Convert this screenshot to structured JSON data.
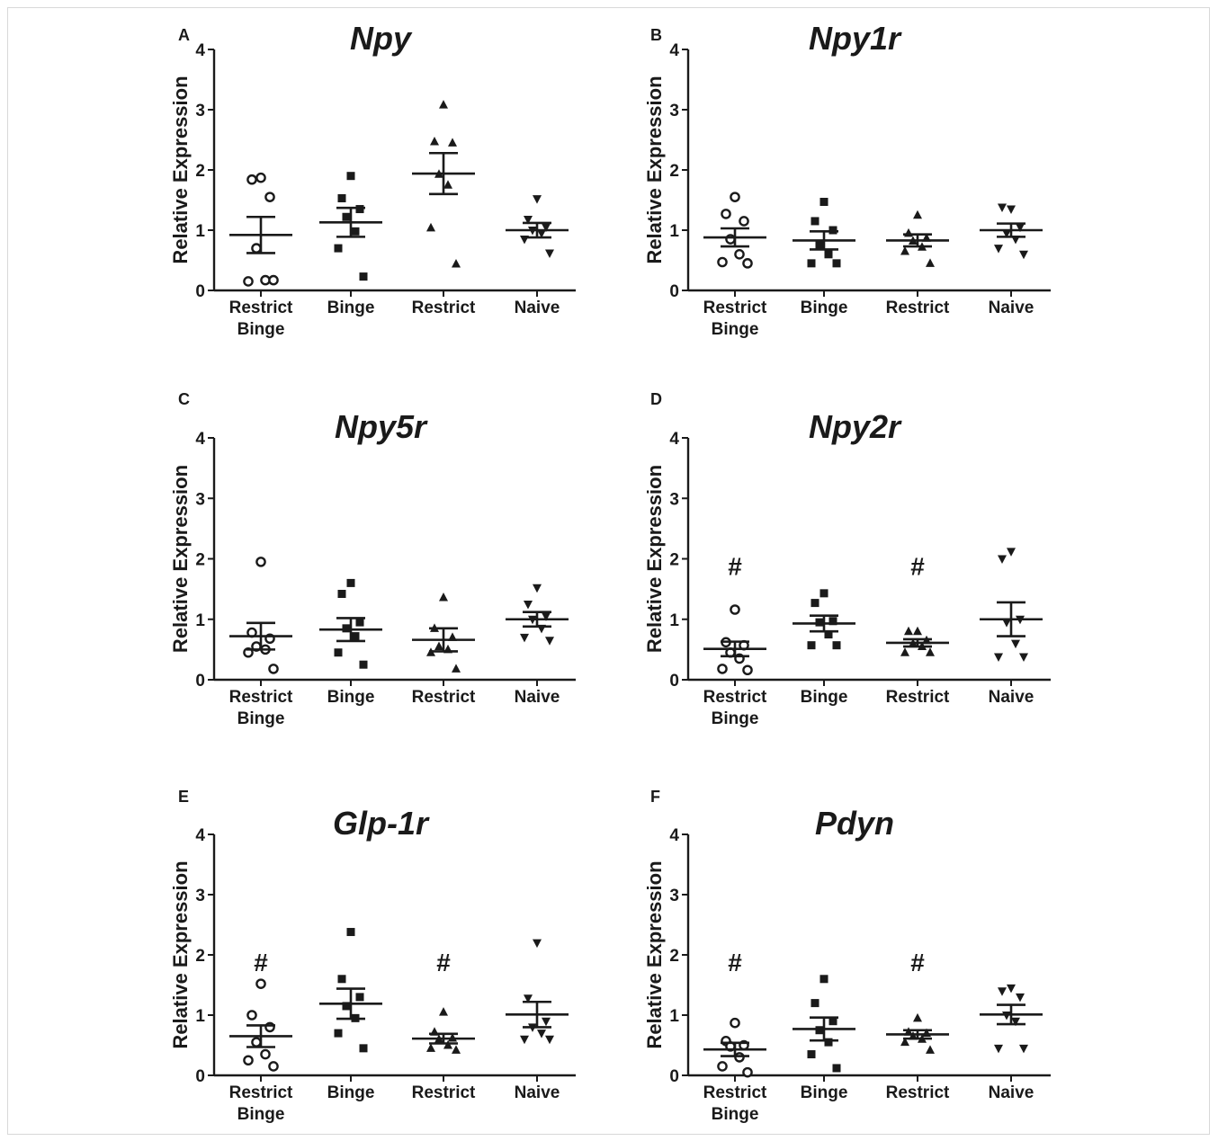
{
  "y_axis_label": "Relative Expression",
  "chart_data": [
    {
      "panel": "A",
      "title": "Npy",
      "type": "scatter",
      "categories": [
        "Restrict\nBinge",
        "Binge",
        "Restrict",
        "Naive"
      ],
      "ylim": [
        0,
        4
      ],
      "yticks": [
        0,
        1,
        2,
        3,
        4
      ],
      "series": [
        {
          "marker": "open-circle",
          "points": [
            1.87,
            1.84,
            1.55,
            0.7,
            0.17,
            0.15,
            0.17
          ],
          "mean": 0.92,
          "sem": 0.3
        },
        {
          "marker": "square",
          "points": [
            1.9,
            1.53,
            1.35,
            1.22,
            0.98,
            0.7,
            0.23
          ],
          "mean": 1.13,
          "sem": 0.24
        },
        {
          "marker": "triangle-up",
          "points": [
            3.08,
            2.47,
            2.45,
            1.93,
            1.75,
            1.04,
            0.44
          ],
          "mean": 1.94,
          "sem": 0.34
        },
        {
          "marker": "triangle-down",
          "points": [
            1.52,
            1.18,
            1.05,
            1.0,
            0.95,
            0.85,
            0.62
          ],
          "mean": 1.0,
          "sem": 0.12
        }
      ],
      "annotations": []
    },
    {
      "panel": "B",
      "title": "Npy1r",
      "type": "scatter",
      "categories": [
        "Restrict\nBinge",
        "Binge",
        "Restrict",
        "Naive"
      ],
      "ylim": [
        0,
        4
      ],
      "yticks": [
        0,
        1,
        2,
        3,
        4
      ],
      "series": [
        {
          "marker": "open-circle",
          "points": [
            1.55,
            1.27,
            1.15,
            0.85,
            0.6,
            0.47,
            0.45
          ],
          "mean": 0.88,
          "sem": 0.15
        },
        {
          "marker": "square",
          "points": [
            1.47,
            1.15,
            1.0,
            0.75,
            0.6,
            0.45,
            0.45
          ],
          "mean": 0.83,
          "sem": 0.15
        },
        {
          "marker": "triangle-up",
          "points": [
            1.25,
            0.95,
            0.87,
            0.82,
            0.72,
            0.65,
            0.45
          ],
          "mean": 0.83,
          "sem": 0.1
        },
        {
          "marker": "triangle-down",
          "points": [
            1.35,
            1.38,
            1.05,
            0.95,
            0.85,
            0.7,
            0.6
          ],
          "mean": 1.0,
          "sem": 0.11
        }
      ],
      "annotations": []
    },
    {
      "panel": "C",
      "title": "Npy5r",
      "type": "scatter",
      "categories": [
        "Restrict\nBinge",
        "Binge",
        "Restrict",
        "Naive"
      ],
      "ylim": [
        0,
        4
      ],
      "yticks": [
        0,
        1,
        2,
        3,
        4
      ],
      "series": [
        {
          "marker": "open-circle",
          "points": [
            1.95,
            0.78,
            0.68,
            0.55,
            0.5,
            0.45,
            0.18
          ],
          "mean": 0.72,
          "sem": 0.22
        },
        {
          "marker": "square",
          "points": [
            1.6,
            1.42,
            0.95,
            0.85,
            0.72,
            0.45,
            0.25
          ],
          "mean": 0.83,
          "sem": 0.19
        },
        {
          "marker": "triangle-up",
          "points": [
            1.36,
            0.85,
            0.7,
            0.55,
            0.5,
            0.45,
            0.18
          ],
          "mean": 0.66,
          "sem": 0.19
        },
        {
          "marker": "triangle-down",
          "points": [
            1.52,
            1.25,
            1.05,
            1.0,
            0.85,
            0.7,
            0.65
          ],
          "mean": 1.0,
          "sem": 0.12
        }
      ],
      "annotations": []
    },
    {
      "panel": "D",
      "title": "Npy2r",
      "type": "scatter",
      "categories": [
        "Restrict\nBinge",
        "Binge",
        "Restrict",
        "Naive"
      ],
      "ylim": [
        0,
        4
      ],
      "yticks": [
        0,
        1,
        2,
        3,
        4
      ],
      "series": [
        {
          "marker": "open-circle",
          "points": [
            1.16,
            0.62,
            0.57,
            0.45,
            0.35,
            0.18,
            0.16
          ],
          "mean": 0.51,
          "sem": 0.12
        },
        {
          "marker": "square",
          "points": [
            1.43,
            1.27,
            0.97,
            0.95,
            0.75,
            0.57,
            0.57
          ],
          "mean": 0.93,
          "sem": 0.13
        },
        {
          "marker": "triangle-up",
          "points": [
            0.8,
            0.8,
            0.65,
            0.6,
            0.55,
            0.45,
            0.45
          ],
          "mean": 0.61,
          "sem": 0.06
        },
        {
          "marker": "triangle-down",
          "points": [
            2.12,
            2.0,
            1.0,
            0.95,
            0.6,
            0.38,
            0.38
          ],
          "mean": 1.0,
          "sem": 0.28
        }
      ],
      "annotations": [
        {
          "category": 0,
          "text": "#",
          "y": 1.88
        },
        {
          "category": 2,
          "text": "#",
          "y": 1.88
        }
      ]
    },
    {
      "panel": "E",
      "title": "Glp-1r",
      "type": "scatter",
      "categories": [
        "Restrict\nBinge",
        "Binge",
        "Restrict",
        "Naive"
      ],
      "ylim": [
        0,
        4
      ],
      "yticks": [
        0,
        1,
        2,
        3,
        4
      ],
      "series": [
        {
          "marker": "open-circle",
          "points": [
            1.52,
            1.0,
            0.8,
            0.55,
            0.35,
            0.25,
            0.15
          ],
          "mean": 0.65,
          "sem": 0.18
        },
        {
          "marker": "square",
          "points": [
            2.38,
            1.6,
            1.3,
            1.15,
            0.95,
            0.7,
            0.45
          ],
          "mean": 1.19,
          "sem": 0.25
        },
        {
          "marker": "triangle-up",
          "points": [
            1.05,
            0.72,
            0.62,
            0.6,
            0.5,
            0.45,
            0.42
          ],
          "mean": 0.61,
          "sem": 0.08
        },
        {
          "marker": "triangle-down",
          "points": [
            2.2,
            1.28,
            0.9,
            0.8,
            0.7,
            0.6,
            0.6
          ],
          "mean": 1.01,
          "sem": 0.21
        }
      ],
      "annotations": [
        {
          "category": 0,
          "text": "#",
          "y": 1.88
        },
        {
          "category": 2,
          "text": "#",
          "y": 1.88
        }
      ]
    },
    {
      "panel": "F",
      "title": "Pdyn",
      "type": "scatter",
      "categories": [
        "Restrict\nBinge",
        "Binge",
        "Restrict",
        "Naive"
      ],
      "ylim": [
        0,
        4
      ],
      "yticks": [
        0,
        1,
        2,
        3,
        4
      ],
      "series": [
        {
          "marker": "open-circle",
          "points": [
            0.87,
            0.57,
            0.5,
            0.48,
            0.3,
            0.15,
            0.05
          ],
          "mean": 0.43,
          "sem": 0.11
        },
        {
          "marker": "square",
          "points": [
            1.6,
            1.2,
            0.9,
            0.75,
            0.55,
            0.35,
            0.12
          ],
          "mean": 0.77,
          "sem": 0.19
        },
        {
          "marker": "triangle-up",
          "points": [
            0.95,
            0.72,
            0.7,
            0.65,
            0.6,
            0.55,
            0.42
          ],
          "mean": 0.68,
          "sem": 0.07
        },
        {
          "marker": "triangle-down",
          "points": [
            1.45,
            1.4,
            1.3,
            1.0,
            0.9,
            0.45,
            0.45
          ],
          "mean": 1.01,
          "sem": 0.16
        }
      ],
      "annotations": [
        {
          "category": 0,
          "text": "#",
          "y": 1.88
        },
        {
          "category": 2,
          "text": "#",
          "y": 1.88
        }
      ]
    }
  ]
}
